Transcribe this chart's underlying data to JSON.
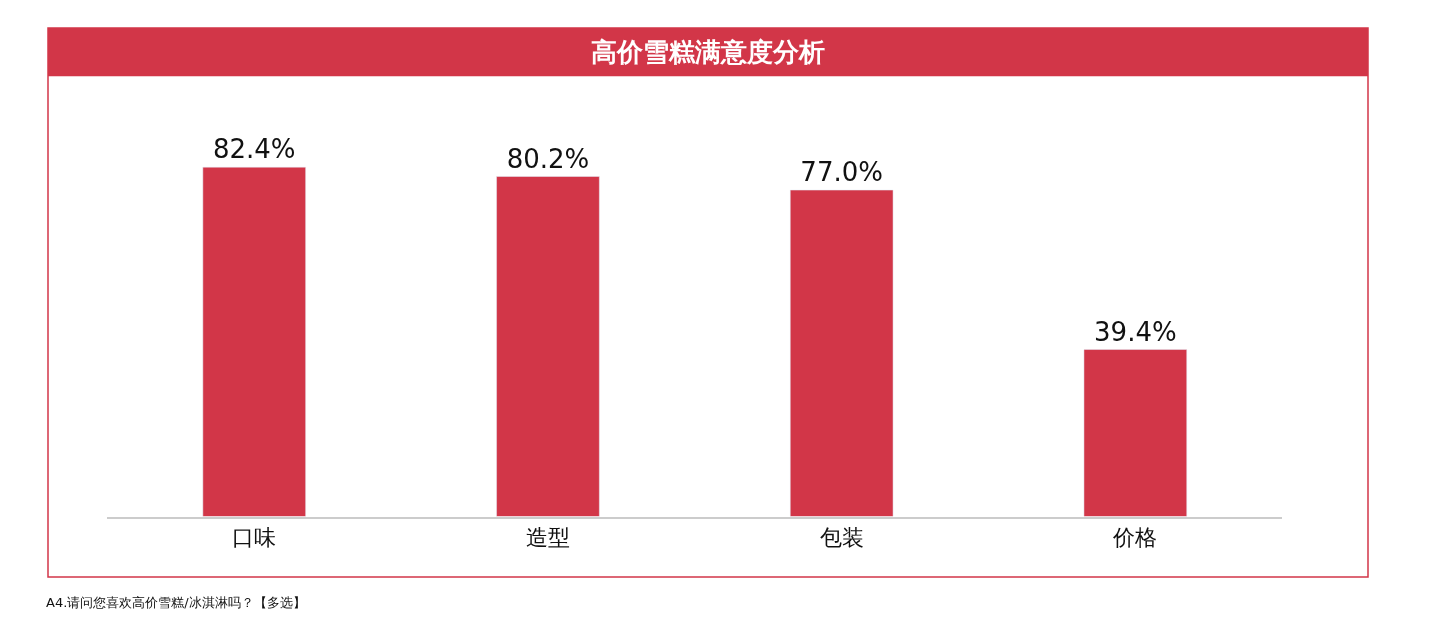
{
  "chart_data": {
    "type": "bar",
    "title": "高价雪糕满意度分析",
    "categories": [
      "口味",
      "造型",
      "包装",
      "价格"
    ],
    "values": [
      82.4,
      80.2,
      77.0,
      39.4
    ],
    "value_labels": [
      "82.4%",
      "80.2%",
      "77.0%",
      "39.4%"
    ],
    "color": "#d23648",
    "annotations": [
      "A4.请问您喜欢高价雪糕/冰淇淋吗？【多选】"
    ],
    "data_labels": false
  }
}
